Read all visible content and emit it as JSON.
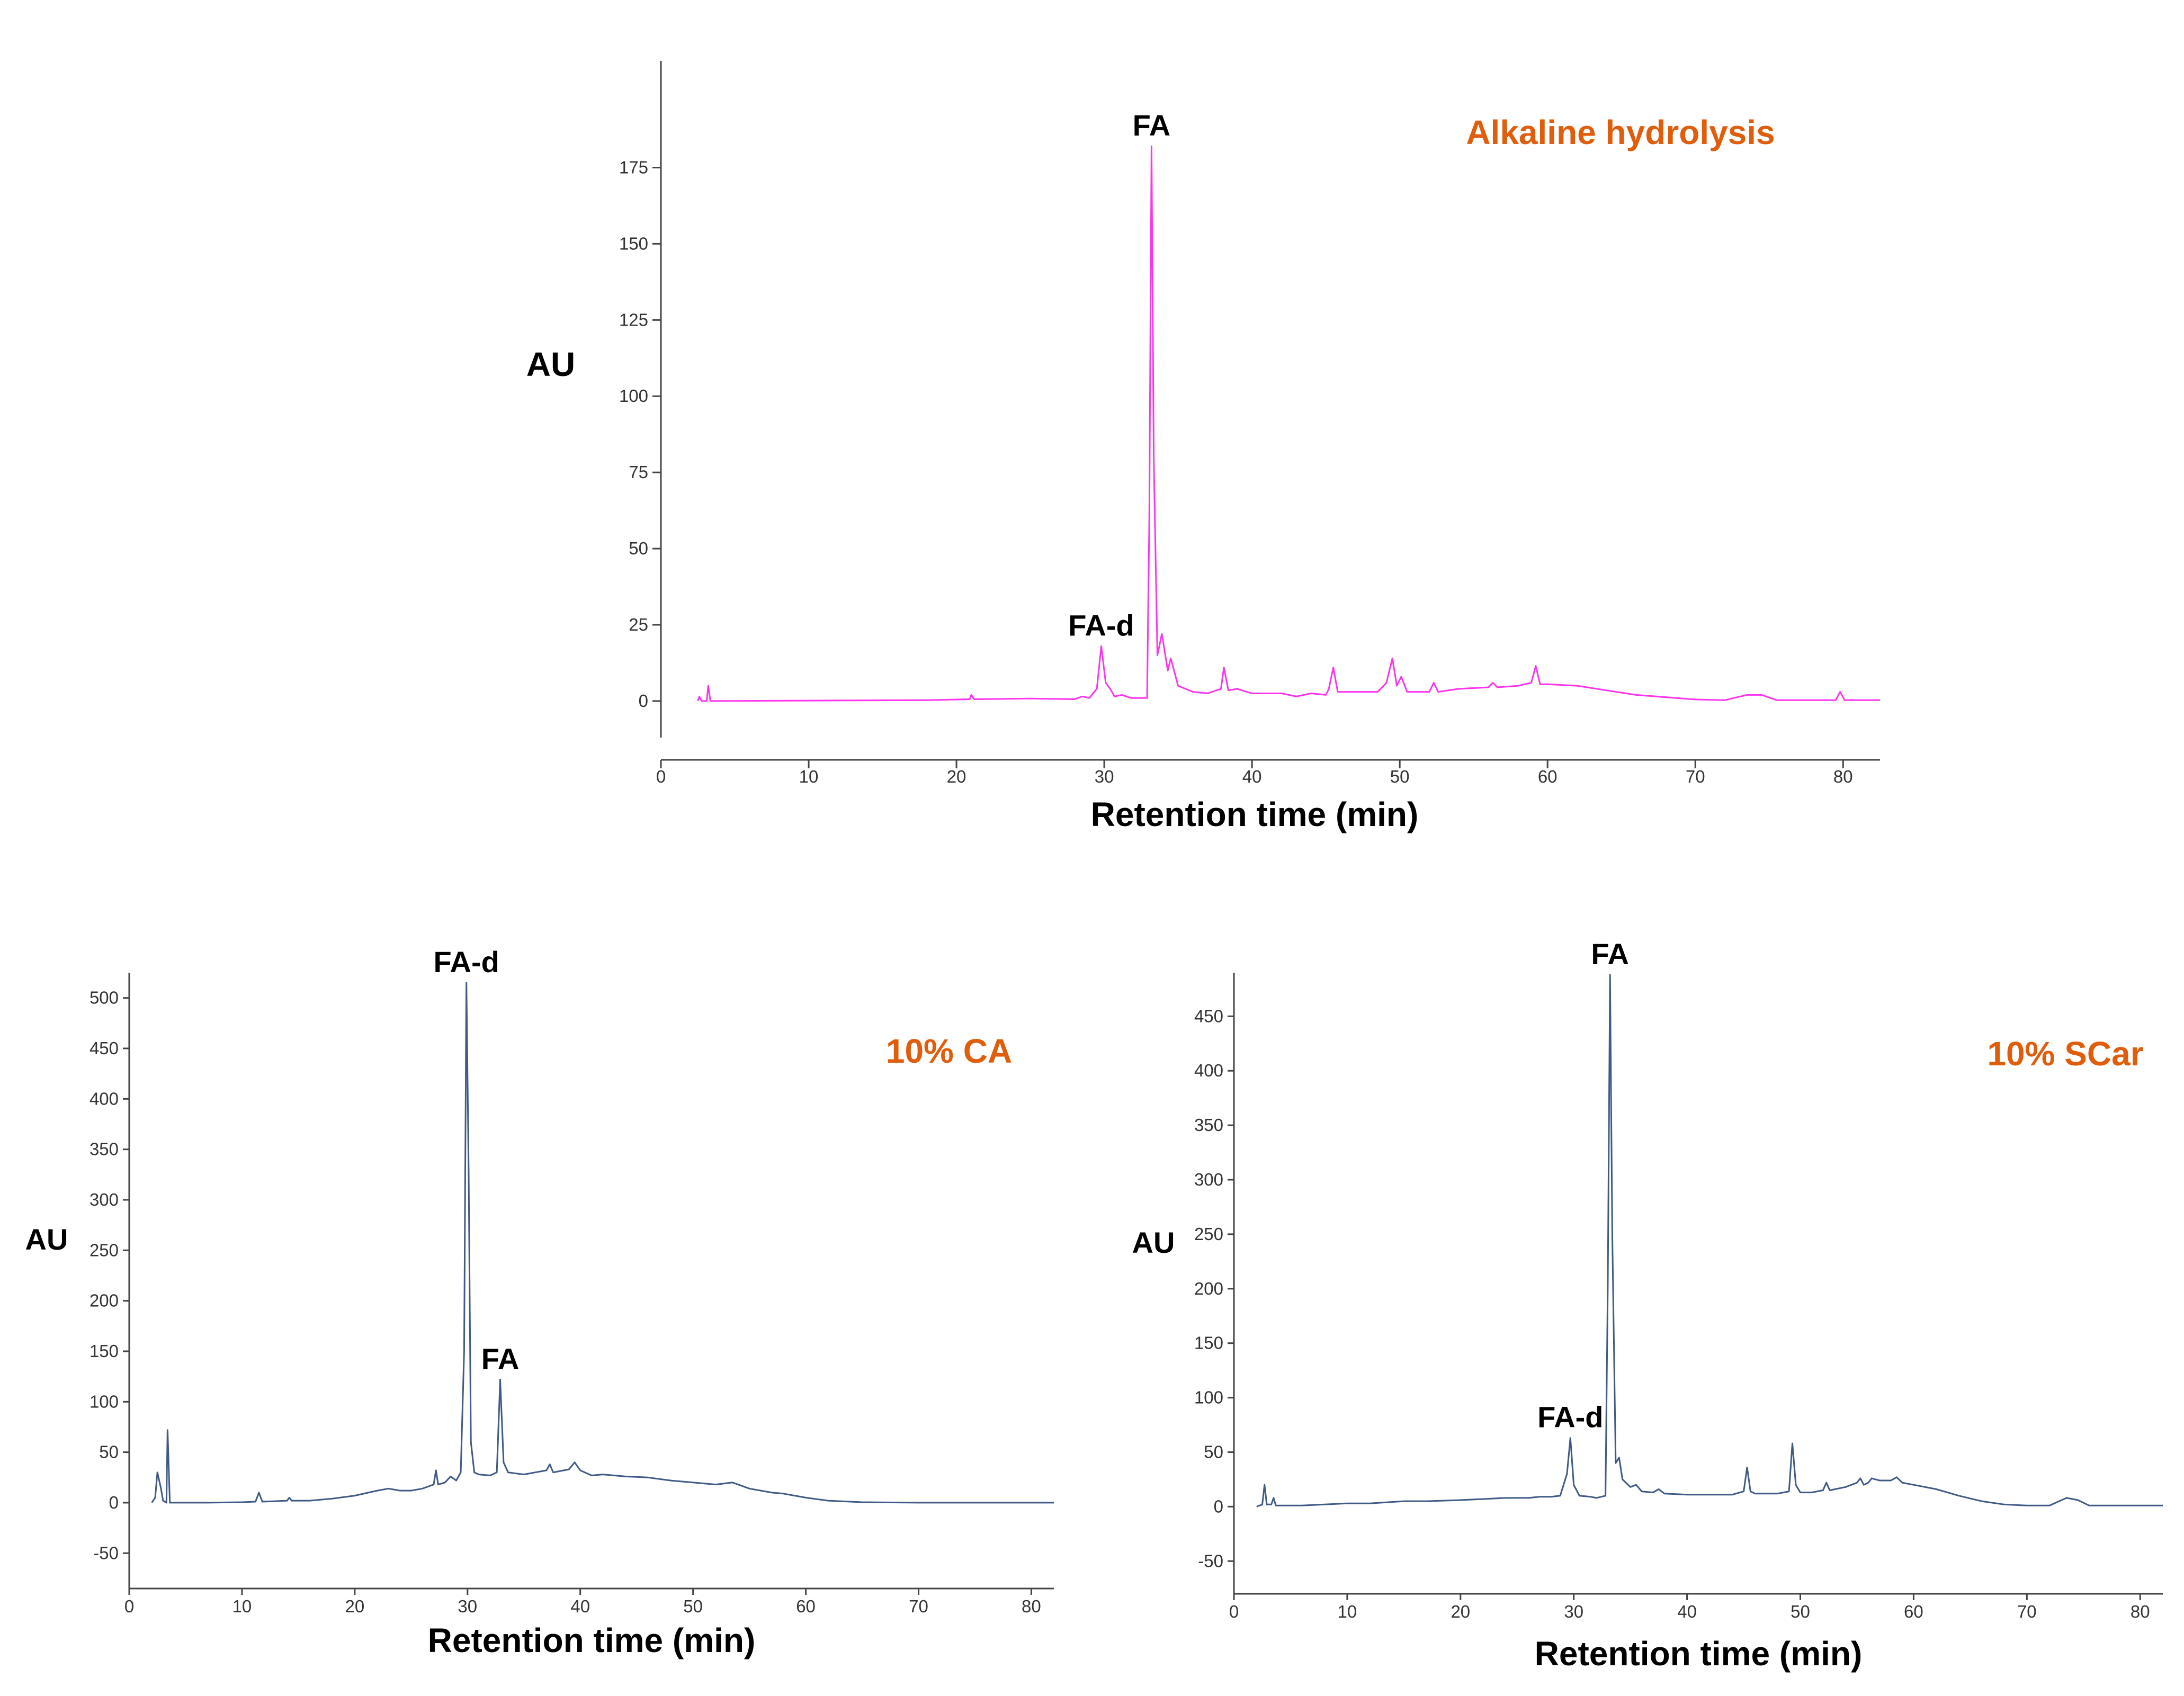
{
  "colors": {
    "top_trace": "#ff33ee",
    "bottom_trace": "#3f5a85",
    "title_accent": "#e05d0c"
  },
  "chart_data": [
    {
      "type": "line",
      "title": "Alkaline hydrolysis",
      "xlabel": "Retention time (min)",
      "ylabel": "AU",
      "xlim": [
        0,
        82.5
      ],
      "ylim": [
        -12,
        210
      ],
      "x_ticks": [
        0,
        10,
        20,
        30,
        40,
        50,
        60,
        70,
        80
      ],
      "y_ticks": [
        0,
        25,
        50,
        75,
        100,
        125,
        150,
        175
      ],
      "grid": false,
      "annotations": [
        {
          "text": "FA",
          "x": 33.2,
          "y": 182
        },
        {
          "text": "FA-d",
          "x": 29.8,
          "y": 18
        }
      ],
      "series": [
        {
          "points": [
            [
              2.5,
              0
            ],
            [
              2.6,
              1.5
            ],
            [
              2.75,
              0
            ],
            [
              3.1,
              0
            ],
            [
              3.2,
              5
            ],
            [
              3.35,
              0
            ],
            [
              18,
              0.3
            ],
            [
              20.9,
              0.6
            ],
            [
              21,
              2
            ],
            [
              21.2,
              0.6
            ],
            [
              25,
              0.8
            ],
            [
              28,
              0.6
            ],
            [
              28.5,
              1.5
            ],
            [
              29,
              1
            ],
            [
              29.5,
              4
            ],
            [
              29.8,
              18
            ],
            [
              30.1,
              6
            ],
            [
              30.4,
              4
            ],
            [
              30.7,
              1.5
            ],
            [
              31.2,
              2
            ],
            [
              31.8,
              1
            ],
            [
              32.9,
              1
            ],
            [
              33.05,
              60
            ],
            [
              33.2,
              182
            ],
            [
              33.35,
              80
            ],
            [
              33.6,
              15
            ],
            [
              33.9,
              22
            ],
            [
              34.3,
              10
            ],
            [
              34.5,
              14
            ],
            [
              35,
              5
            ],
            [
              35.5,
              4
            ],
            [
              36,
              3
            ],
            [
              37,
              2.5
            ],
            [
              37.9,
              4
            ],
            [
              38.1,
              11
            ],
            [
              38.4,
              3.5
            ],
            [
              39,
              4
            ],
            [
              40,
              2.5
            ],
            [
              42,
              2.5
            ],
            [
              43,
              1.5
            ],
            [
              44,
              2.5
            ],
            [
              45,
              2
            ],
            [
              45.2,
              4
            ],
            [
              45.5,
              11
            ],
            [
              45.8,
              3
            ],
            [
              47,
              3
            ],
            [
              48.5,
              3
            ],
            [
              49.1,
              6
            ],
            [
              49.5,
              14
            ],
            [
              49.8,
              5
            ],
            [
              50.1,
              8
            ],
            [
              50.5,
              3
            ],
            [
              51,
              3
            ],
            [
              52,
              3
            ],
            [
              52.3,
              6
            ],
            [
              52.6,
              3
            ],
            [
              54,
              4
            ],
            [
              56,
              4.5
            ],
            [
              56.3,
              6
            ],
            [
              56.6,
              4.5
            ],
            [
              58,
              5
            ],
            [
              58.9,
              6
            ],
            [
              59.2,
              11.5
            ],
            [
              59.5,
              5.5
            ],
            [
              60,
              5.5
            ],
            [
              62,
              5
            ],
            [
              64,
              3.5
            ],
            [
              66,
              2
            ],
            [
              70,
              0.5
            ],
            [
              72,
              0.3
            ],
            [
              73.5,
              2
            ],
            [
              74.5,
              2
            ],
            [
              75.5,
              0.3
            ],
            [
              79.5,
              0.3
            ],
            [
              79.8,
              3
            ],
            [
              80.1,
              0.3
            ],
            [
              82.5,
              0.3
            ]
          ]
        }
      ]
    },
    {
      "type": "line",
      "title": "10% CA",
      "xlabel": "Retention time (min)",
      "ylabel": "AU",
      "xlim": [
        0,
        82
      ],
      "ylim": [
        -85,
        525
      ],
      "x_ticks": [
        0,
        10,
        20,
        30,
        40,
        50,
        60,
        70,
        80
      ],
      "y_ticks": [
        -50,
        0,
        50,
        100,
        150,
        200,
        250,
        300,
        350,
        400,
        450,
        500
      ],
      "grid": false,
      "annotations": [
        {
          "text": "FA-d",
          "x": 29.9,
          "y": 515
        },
        {
          "text": "FA",
          "x": 32.9,
          "y": 122
        }
      ],
      "series": [
        {
          "points": [
            [
              2,
              0
            ],
            [
              2.3,
              5
            ],
            [
              2.5,
              30
            ],
            [
              2.8,
              15
            ],
            [
              3,
              2
            ],
            [
              3.3,
              0
            ],
            [
              3.4,
              72
            ],
            [
              3.6,
              0
            ],
            [
              7,
              0
            ],
            [
              10,
              0.5
            ],
            [
              11.2,
              1
            ],
            [
              11.5,
              10
            ],
            [
              11.8,
              1
            ],
            [
              14,
              2
            ],
            [
              14.2,
              5
            ],
            [
              14.4,
              2
            ],
            [
              16,
              2
            ],
            [
              18,
              4
            ],
            [
              20,
              7
            ],
            [
              22,
              12
            ],
            [
              23,
              14
            ],
            [
              24,
              12
            ],
            [
              25,
              12
            ],
            [
              26,
              14
            ],
            [
              27,
              18
            ],
            [
              27.2,
              32
            ],
            [
              27.4,
              18
            ],
            [
              28,
              20
            ],
            [
              28.5,
              26
            ],
            [
              29,
              22
            ],
            [
              29.4,
              30
            ],
            [
              29.7,
              150
            ],
            [
              29.9,
              515
            ],
            [
              30.1,
              330
            ],
            [
              30.3,
              60
            ],
            [
              30.6,
              30
            ],
            [
              31,
              28
            ],
            [
              32,
              27
            ],
            [
              32.6,
              30
            ],
            [
              32.9,
              122
            ],
            [
              33.2,
              40
            ],
            [
              33.6,
              30
            ],
            [
              35,
              28
            ],
            [
              36,
              30
            ],
            [
              37,
              32
            ],
            [
              37.3,
              38
            ],
            [
              37.6,
              30
            ],
            [
              39,
              33
            ],
            [
              39.5,
              40
            ],
            [
              40,
              32
            ],
            [
              41,
              27
            ],
            [
              42,
              28
            ],
            [
              44,
              26
            ],
            [
              46,
              25
            ],
            [
              48,
              22
            ],
            [
              49,
              21
            ],
            [
              50,
              20
            ],
            [
              52,
              18
            ],
            [
              53.5,
              20
            ],
            [
              55,
              14
            ],
            [
              57,
              10
            ],
            [
              58,
              9
            ],
            [
              60,
              5
            ],
            [
              62,
              2
            ],
            [
              65,
              0.5
            ],
            [
              70,
              0
            ],
            [
              82,
              0
            ]
          ]
        }
      ]
    },
    {
      "type": "line",
      "title": "10% SCar",
      "xlabel": "Retention time (min)",
      "ylabel": "AU",
      "xlim": [
        0,
        82
      ],
      "ylim": [
        -80,
        490
      ],
      "x_ticks": [
        0,
        10,
        20,
        30,
        40,
        50,
        60,
        70,
        80
      ],
      "y_ticks": [
        -50,
        0,
        50,
        100,
        150,
        200,
        250,
        300,
        350,
        400,
        450
      ],
      "grid": false,
      "annotations": [
        {
          "text": "FA",
          "x": 33.2,
          "y": 488
        },
        {
          "text": "FA-d",
          "x": 29.7,
          "y": 63
        }
      ],
      "series": [
        {
          "points": [
            [
              2,
              0
            ],
            [
              2.5,
              2
            ],
            [
              2.7,
              20
            ],
            [
              2.9,
              2
            ],
            [
              3.3,
              2
            ],
            [
              3.5,
              8
            ],
            [
              3.7,
              1
            ],
            [
              6,
              1
            ],
            [
              10,
              3
            ],
            [
              12,
              3
            ],
            [
              15,
              5
            ],
            [
              17,
              5
            ],
            [
              20,
              6
            ],
            [
              22,
              7
            ],
            [
              24,
              8
            ],
            [
              26,
              8
            ],
            [
              27,
              9
            ],
            [
              28,
              9
            ],
            [
              28.8,
              10
            ],
            [
              29.4,
              30
            ],
            [
              29.7,
              63
            ],
            [
              30,
              20
            ],
            [
              30.5,
              10
            ],
            [
              31.5,
              9
            ],
            [
              32,
              8
            ],
            [
              32.8,
              10
            ],
            [
              33.0,
              200
            ],
            [
              33.2,
              488
            ],
            [
              33.4,
              250
            ],
            [
              33.7,
              40
            ],
            [
              34,
              45
            ],
            [
              34.3,
              25
            ],
            [
              35,
              18
            ],
            [
              35.5,
              20
            ],
            [
              36,
              14
            ],
            [
              37,
              13
            ],
            [
              37.5,
              16
            ],
            [
              38,
              12
            ],
            [
              40,
              11
            ],
            [
              42,
              11
            ],
            [
              44,
              11
            ],
            [
              45,
              14
            ],
            [
              45.3,
              36
            ],
            [
              45.6,
              14
            ],
            [
              46,
              12
            ],
            [
              48,
              12
            ],
            [
              49,
              14
            ],
            [
              49.3,
              58
            ],
            [
              49.6,
              20
            ],
            [
              50,
              13
            ],
            [
              51,
              13
            ],
            [
              52,
              15
            ],
            [
              52.3,
              22
            ],
            [
              52.6,
              15
            ],
            [
              54,
              18
            ],
            [
              55,
              22
            ],
            [
              55.3,
              26
            ],
            [
              55.6,
              20
            ],
            [
              56,
              22
            ],
            [
              56.3,
              26
            ],
            [
              57,
              24
            ],
            [
              58,
              24
            ],
            [
              58.5,
              27
            ],
            [
              59,
              22
            ],
            [
              60,
              20
            ],
            [
              62,
              16
            ],
            [
              64,
              10
            ],
            [
              66,
              5
            ],
            [
              68,
              2
            ],
            [
              70,
              1
            ],
            [
              72,
              1
            ],
            [
              73.5,
              8
            ],
            [
              74.5,
              6
            ],
            [
              75.5,
              1
            ],
            [
              82,
              1
            ]
          ]
        }
      ]
    }
  ]
}
